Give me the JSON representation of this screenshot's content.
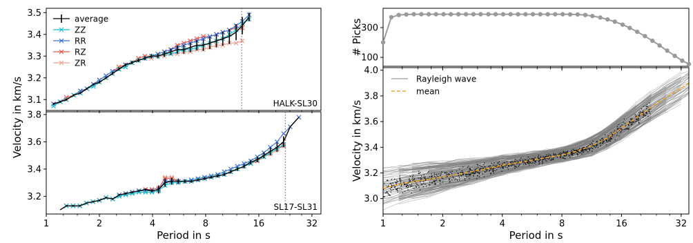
{
  "chart_data": [
    {
      "type": "line",
      "panel": "left-top",
      "xscale": "log2",
      "xlim": [
        1,
        36
      ],
      "ylim": [
        3.05,
        3.52
      ],
      "ylabel": "",
      "xlabel": "",
      "yticks": [
        3.1,
        3.2,
        3.3,
        3.4,
        3.5
      ],
      "xticks": [
        1,
        2,
        4,
        8,
        16,
        32
      ],
      "show_xtick_labels": false,
      "station_label": "HALK-SL30",
      "vline_x": 12.8,
      "legend": {
        "placement": "top-left",
        "entries": [
          "average",
          "ZZ",
          "RR",
          "RZ",
          "ZR"
        ]
      },
      "x": [
        1.1,
        1.2,
        1.3,
        1.43,
        1.56,
        1.7,
        1.85,
        2.0,
        2.18,
        2.37,
        2.58,
        2.81,
        3.06,
        3.33,
        3.62,
        3.94,
        4.29,
        4.67,
        5.08,
        5.53,
        6.02,
        6.55,
        7.13,
        7.76,
        8.45,
        9.2,
        10.0,
        10.9,
        11.9,
        12.9,
        14.1
      ],
      "series": [
        {
          "name": "average",
          "values": [
            3.08,
            3.09,
            3.1,
            3.12,
            3.13,
            3.15,
            3.17,
            3.18,
            3.2,
            3.22,
            3.24,
            3.26,
            3.27,
            3.28,
            3.29,
            3.3,
            3.3,
            3.31,
            3.32,
            3.33,
            3.33,
            3.34,
            3.35,
            3.35,
            3.36,
            3.37,
            3.38,
            3.39,
            3.41,
            3.44,
            3.48
          ],
          "errors": [
            0.005,
            0.005,
            0.005,
            0.005,
            0.005,
            0.005,
            0.005,
            0.006,
            0.006,
            0.007,
            0.007,
            0.007,
            0.008,
            0.008,
            0.009,
            0.01,
            0.011,
            0.013,
            0.015,
            0.018,
            0.02,
            0.022,
            0.024,
            0.026,
            0.028,
            0.03,
            0.032,
            0.034,
            0.037,
            0.04,
            0.02
          ]
        },
        {
          "name": "ZZ",
          "values": [
            3.07,
            3.09,
            3.1,
            3.12,
            3.13,
            3.15,
            3.16,
            3.18,
            3.2,
            3.22,
            3.24,
            3.25,
            3.27,
            3.28,
            3.29,
            3.3,
            3.3,
            3.31,
            3.31,
            3.32,
            3.33,
            3.33,
            3.34,
            3.35,
            3.36,
            3.37,
            3.38,
            3.4,
            3.42,
            3.45,
            3.47
          ]
        },
        {
          "name": "RR",
          "values": [
            3.08,
            3.09,
            3.1,
            3.12,
            3.14,
            3.15,
            3.17,
            3.19,
            3.21,
            3.23,
            3.24,
            3.26,
            3.27,
            3.28,
            3.29,
            3.3,
            3.31,
            3.32,
            3.33,
            3.34,
            3.35,
            3.36,
            3.37,
            3.38,
            3.39,
            3.4,
            3.41,
            3.42,
            3.44,
            3.46,
            3.49
          ]
        },
        {
          "name": "RZ",
          "values": [
            3.08,
            3.09,
            3.11,
            3.12,
            3.14,
            3.15,
            3.17,
            3.19,
            3.21,
            3.23,
            3.25,
            3.26,
            3.27,
            3.29,
            3.3,
            3.3,
            3.31,
            3.32,
            3.33,
            3.35,
            3.36,
            3.37,
            3.38,
            3.39,
            3.39,
            3.4,
            3.41,
            3.42,
            3.43,
            3.43,
            null
          ]
        },
        {
          "name": "ZR",
          "values": [
            3.08,
            3.09,
            3.1,
            3.12,
            3.13,
            3.15,
            3.17,
            3.18,
            3.2,
            3.22,
            3.24,
            3.25,
            3.27,
            3.28,
            3.29,
            3.29,
            3.3,
            3.3,
            3.31,
            3.31,
            3.32,
            3.32,
            3.33,
            3.33,
            3.34,
            3.35,
            3.35,
            3.36,
            3.36,
            3.37,
            null
          ]
        }
      ]
    },
    {
      "type": "line",
      "panel": "left-bottom",
      "xscale": "log2",
      "xlim": [
        1,
        36
      ],
      "ylim": [
        3.07,
        3.82
      ],
      "ylabel": "",
      "xlabel": "Period in s",
      "yticks": [
        3.2,
        3.4,
        3.6,
        3.8
      ],
      "xticks": [
        1,
        2,
        4,
        8,
        16,
        32
      ],
      "station_label": "SL17-SL31",
      "vline_x": 22.6,
      "x": [
        1.2,
        1.3,
        1.42,
        1.55,
        1.69,
        1.84,
        2.0,
        2.18,
        2.38,
        2.59,
        2.82,
        3.07,
        3.35,
        3.65,
        3.97,
        4.33,
        4.71,
        5.14,
        5.6,
        6.1,
        6.64,
        7.24,
        7.89,
        8.6,
        9.37,
        10.2,
        11.1,
        12.1,
        13.2,
        14.4,
        15.7,
        17.1,
        18.6,
        20.3,
        22.1,
        24.1,
        27.0
      ],
      "series": [
        {
          "name": "average",
          "values": [
            3.1,
            3.13,
            3.13,
            3.13,
            3.15,
            3.16,
            3.17,
            3.19,
            3.18,
            3.21,
            3.22,
            3.23,
            3.24,
            3.25,
            3.24,
            3.25,
            3.3,
            3.31,
            3.31,
            3.31,
            3.31,
            3.32,
            3.33,
            3.34,
            3.35,
            3.36,
            3.38,
            3.4,
            3.42,
            3.45,
            3.47,
            3.5,
            3.53,
            3.56,
            3.6,
            3.71,
            3.78
          ],
          "errors": [
            0,
            0.005,
            0.005,
            0.005,
            0.005,
            0.005,
            0.006,
            0.006,
            0.006,
            0.006,
            0.007,
            0.007,
            0.008,
            0.008,
            0.01,
            0.03,
            0.03,
            0.025,
            0.02,
            0.015,
            0.01,
            0.01,
            0.01,
            0.01,
            0.012,
            0.012,
            0.013,
            0.014,
            0.015,
            0.017,
            0.02,
            0.022,
            0.03,
            0.035,
            0.04,
            0,
            0
          ]
        },
        {
          "name": "ZZ",
          "values": [
            null,
            3.13,
            3.13,
            3.13,
            3.15,
            3.16,
            3.17,
            3.19,
            3.18,
            3.2,
            3.21,
            3.22,
            3.23,
            3.23,
            3.23,
            3.24,
            3.28,
            3.3,
            3.3,
            3.31,
            3.31,
            3.32,
            3.33,
            3.34,
            3.35,
            3.36,
            3.38,
            3.4,
            3.42,
            3.44,
            3.47,
            3.49,
            3.52,
            3.55,
            3.58,
            null,
            null
          ]
        },
        {
          "name": "RR",
          "values": [
            null,
            3.13,
            3.13,
            3.13,
            3.15,
            3.16,
            3.17,
            3.19,
            3.18,
            3.21,
            3.22,
            3.23,
            3.24,
            3.24,
            3.24,
            3.25,
            3.31,
            3.31,
            3.31,
            3.31,
            3.32,
            3.33,
            3.34,
            3.35,
            3.36,
            3.38,
            3.4,
            3.42,
            3.44,
            3.46,
            3.49,
            3.52,
            3.56,
            3.6,
            3.66,
            3.71,
            3.78
          ]
        },
        {
          "name": "RZ",
          "values": [
            null,
            3.13,
            3.13,
            3.13,
            3.15,
            3.16,
            3.17,
            3.19,
            3.18,
            3.21,
            3.22,
            3.23,
            3.24,
            3.25,
            3.25,
            3.26,
            3.33,
            3.33,
            3.31,
            3.31,
            3.31,
            3.32,
            3.33,
            3.34,
            3.35,
            3.36,
            3.38,
            3.4,
            3.42,
            3.44,
            3.46,
            3.49,
            3.52,
            3.55,
            3.57,
            null,
            null
          ]
        },
        {
          "name": "ZR",
          "values": [
            null,
            3.13,
            3.13,
            3.13,
            3.15,
            3.16,
            3.17,
            3.19,
            3.18,
            3.21,
            3.22,
            3.23,
            3.24,
            3.24,
            3.24,
            3.25,
            3.34,
            3.34,
            3.31,
            3.31,
            3.31,
            3.32,
            3.33,
            3.34,
            3.35,
            3.36,
            3.38,
            3.4,
            3.42,
            3.44,
            3.46,
            3.49,
            3.51,
            3.54,
            3.58,
            null,
            null
          ]
        }
      ]
    },
    {
      "type": "line",
      "panel": "right-top",
      "xscale": "log2",
      "xlim": [
        1,
        35
      ],
      "ylim": [
        40,
        430
      ],
      "ylabel": "# Picks",
      "xlabel": "",
      "yticks": [
        100,
        300
      ],
      "xticks": [
        1,
        2,
        4,
        8,
        16,
        32
      ],
      "show_xtick_labels": false,
      "x": [
        1.0,
        1.1,
        1.2,
        1.31,
        1.43,
        1.56,
        1.7,
        1.85,
        2.02,
        2.2,
        2.4,
        2.62,
        2.86,
        3.11,
        3.4,
        3.7,
        4.04,
        4.4,
        4.8,
        5.24,
        5.71,
        6.22,
        6.79,
        7.4,
        8.07,
        8.8,
        9.6,
        10.5,
        11.4,
        12.5,
        13.6,
        14.8,
        16.2,
        17.6,
        19.2,
        21.0,
        22.9,
        24.9,
        27.2,
        29.7,
        32.4,
        35.0
      ],
      "series": [
        {
          "name": "",
          "values": [
            200,
            370,
            385,
            388,
            390,
            390,
            390,
            390,
            390,
            390,
            390,
            390,
            390,
            390,
            390,
            390,
            390,
            390,
            390,
            390,
            390,
            390,
            390,
            390,
            390,
            389,
            388,
            385,
            378,
            368,
            355,
            340,
            320,
            298,
            272,
            243,
            212,
            180,
            145,
            110,
            78,
            55
          ]
        }
      ]
    },
    {
      "type": "line",
      "panel": "right-bottom",
      "xscale": "log2",
      "xlim": [
        1,
        35
      ],
      "ylim": [
        2.88,
        4.02
      ],
      "xlabel": "Period in s",
      "ylabel": "Velocity in km/s",
      "yticks": [
        3.0,
        3.2,
        3.4,
        3.6,
        3.8,
        4.0
      ],
      "xticks": [
        1,
        2,
        4,
        8,
        16,
        32
      ],
      "legend": {
        "placement": "top-left",
        "entries": [
          "Rayleigh wave",
          "mean"
        ]
      },
      "x": [
        1.0,
        1.2,
        1.4,
        1.7,
        2.0,
        2.4,
        2.8,
        3.3,
        4.0,
        4.8,
        5.7,
        6.7,
        8.0,
        9.5,
        11.3,
        13.5,
        16.0,
        19.0,
        22.6,
        26.9,
        32.0,
        35.0
      ],
      "series": [
        {
          "name": "mean",
          "values": [
            3.08,
            3.11,
            3.13,
            3.15,
            3.17,
            3.19,
            3.21,
            3.23,
            3.26,
            3.28,
            3.3,
            3.32,
            3.34,
            3.37,
            3.41,
            3.47,
            3.55,
            3.63,
            3.71,
            3.79,
            3.86,
            3.9
          ]
        }
      ],
      "curve_spread": [
        0.16,
        0.15,
        0.14,
        0.13,
        0.12,
        0.11,
        0.1,
        0.09,
        0.08,
        0.07,
        0.065,
        0.06,
        0.06,
        0.07,
        0.08,
        0.09,
        0.1,
        0.11,
        0.12,
        0.12,
        0.12,
        0.12
      ],
      "curve_count": 160
    }
  ],
  "labels": {
    "left_ylabel": "Velocity in km/s"
  },
  "colors": {
    "average": "#000000",
    "ZZ": "#17becf",
    "RR": "#3a6fd8",
    "RZ": "#e8574a",
    "ZR": "#f0a090",
    "picks": "#9a9a9a",
    "curves": "#7f7f7f",
    "mean": "#f5a623"
  }
}
